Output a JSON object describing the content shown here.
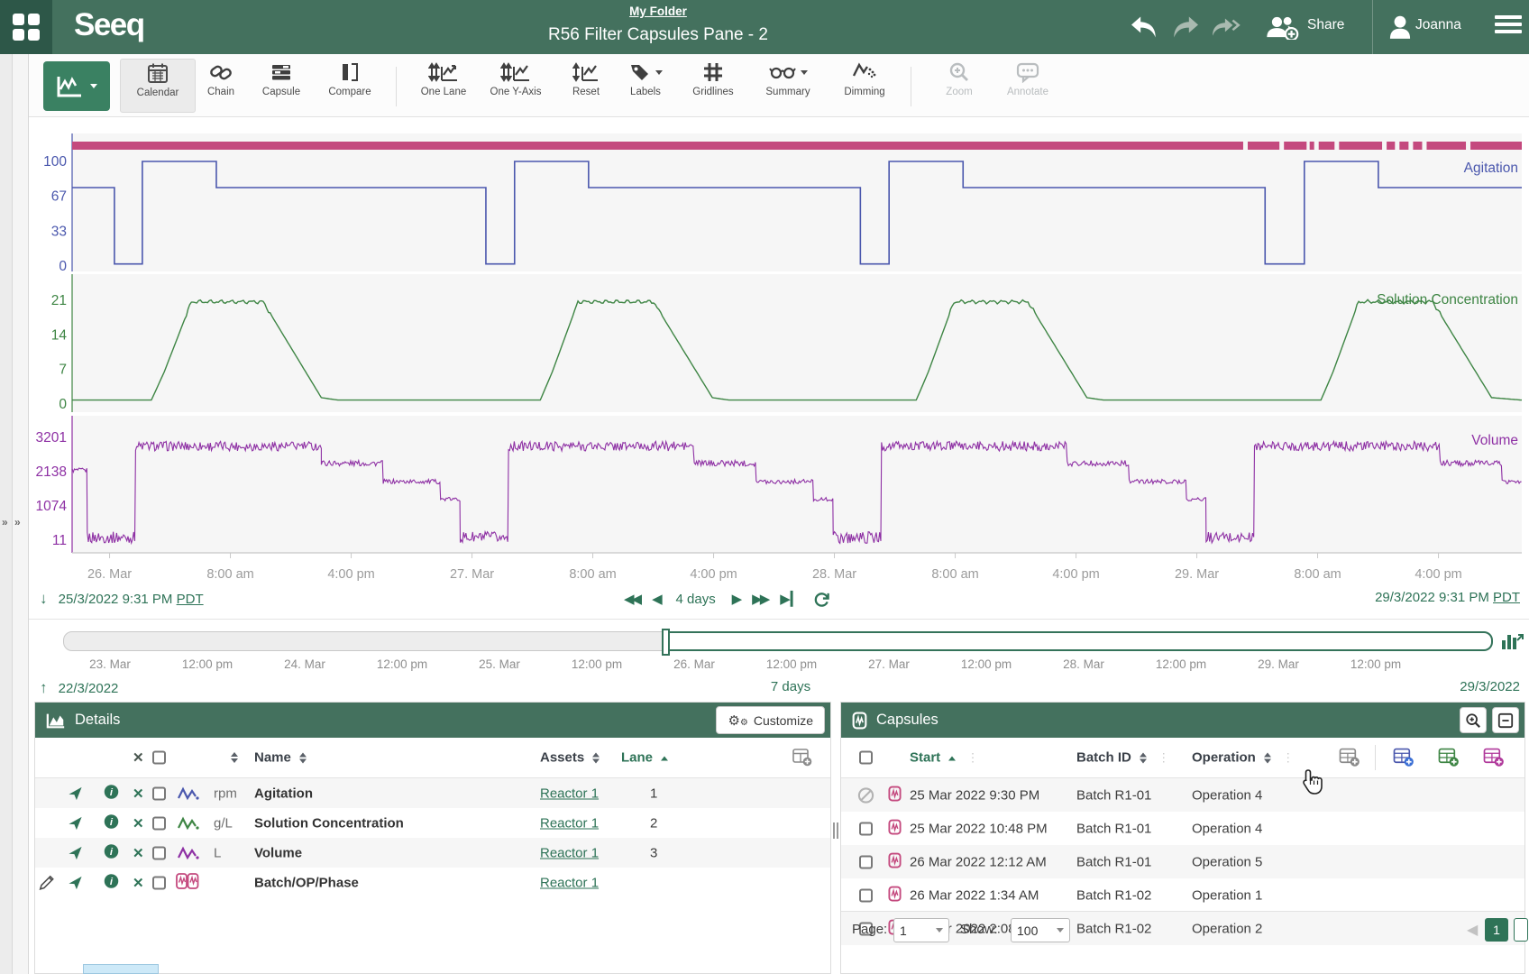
{
  "colors": {
    "header_green": "#44715e",
    "logo_box_green": "#2d5748",
    "accent_green": "#2e7357",
    "mode_btn_green": "#3a8162",
    "disabled_gray": "#b9bdbf",
    "signal_blue": "#4a57ad",
    "signal_green": "#3e8544",
    "signal_purple": "#8e30a4",
    "capsule_pink": "#c4497e"
  },
  "header": {
    "logo": "Seeq",
    "breadcrumb": "My Folder",
    "title": "R56 Filter Capsules Pane - 2",
    "share_label": "Share",
    "user_name": "Joanna"
  },
  "toolbar": {
    "tools": [
      {
        "label": "Calendar"
      },
      {
        "label": "Chain"
      },
      {
        "label": "Capsule"
      },
      {
        "label": "Compare"
      },
      {
        "label": "One Lane"
      },
      {
        "label": "One Y-Axis"
      },
      {
        "label": "Reset"
      },
      {
        "label": "Labels"
      },
      {
        "label": "Gridlines"
      },
      {
        "label": "Summary"
      },
      {
        "label": "Dimming"
      },
      {
        "label": "Zoom"
      },
      {
        "label": "Annotate"
      }
    ]
  },
  "range": {
    "start": "25/3/2022 9:31 PM",
    "start_tz": "PDT",
    "duration": "4 days",
    "end": "29/3/2022 9:31 PM",
    "end_tz": "PDT"
  },
  "scrubber": {
    "labels": [
      "23. Mar",
      "12:00 pm",
      "24. Mar",
      "12:00 pm",
      "25. Mar",
      "12:00 pm",
      "26. Mar",
      "12:00 pm",
      "27. Mar",
      "12:00 pm",
      "28. Mar",
      "12:00 pm",
      "29. Mar",
      "12:00 pm"
    ],
    "start_label": "22/3/2022",
    "duration_label": "7 days",
    "end_label": "29/3/2022"
  },
  "details": {
    "title": "Details",
    "customize_label": "Customize",
    "columns": {
      "name": "Name",
      "assets": "Assets",
      "lane": "Lane"
    },
    "rows": [
      {
        "unit": "rpm",
        "name": "Agitation",
        "asset": "Reactor 1",
        "lane": "1"
      },
      {
        "unit": "g/L",
        "name": "Solution Concentration",
        "asset": "Reactor 1",
        "lane": "2"
      },
      {
        "unit": "L",
        "name": "Volume",
        "asset": "Reactor 1",
        "lane": "3"
      },
      {
        "unit": "",
        "name": "Batch/OP/Phase",
        "asset": "Reactor 1",
        "lane": ""
      }
    ]
  },
  "capsules": {
    "title": "Capsules",
    "columns": {
      "start": "Start",
      "batch_id": "Batch ID",
      "operation": "Operation"
    },
    "rows": [
      {
        "start": "25 Mar 2022 9:30 PM",
        "batch_id": "Batch R1-01",
        "operation": "Operation 4"
      },
      {
        "start": "25 Mar 2022 10:48 PM",
        "batch_id": "Batch R1-01",
        "operation": "Operation 4"
      },
      {
        "start": "26 Mar 2022 12:12 AM",
        "batch_id": "Batch R1-01",
        "operation": "Operation 5"
      },
      {
        "start": "26 Mar 2022 1:34 AM",
        "batch_id": "Batch R1-02",
        "operation": "Operation 1"
      },
      {
        "start": "26 Mar 2022 2:08 AM",
        "batch_id": "Batch R1-02",
        "operation": "Operation 2"
      }
    ],
    "pagination": {
      "page_label": "Page:",
      "page_value": "1",
      "show_label": "Show:",
      "show_value": "100",
      "current_page": "1"
    }
  },
  "chart_data": {
    "type": "line",
    "x_axis": {
      "unit": "hours from 25 Mar 2022 9:31 PM PDT",
      "range_hours": 96,
      "ticks": [
        {
          "t": 2.48,
          "label": "26. Mar"
        },
        {
          "t": 10.48,
          "label": "8:00 am"
        },
        {
          "t": 18.48,
          "label": "4:00 pm"
        },
        {
          "t": 26.48,
          "label": "27. Mar"
        },
        {
          "t": 34.48,
          "label": "8:00 am"
        },
        {
          "t": 42.48,
          "label": "4:00 pm"
        },
        {
          "t": 50.48,
          "label": "28. Mar"
        },
        {
          "t": 58.48,
          "label": "8:00 am"
        },
        {
          "t": 66.48,
          "label": "4:00 pm"
        },
        {
          "t": 74.48,
          "label": "29. Mar"
        },
        {
          "t": 82.48,
          "label": "8:00 am"
        },
        {
          "t": 90.48,
          "label": "4:00 pm"
        }
      ]
    },
    "capsule_bar": {
      "name": "Batch/OP/Phase",
      "color": "#c4497e",
      "segments_hours": [
        [
          0,
          77.55
        ],
        [
          77.85,
          79.95
        ],
        [
          80.25,
          81.75
        ],
        [
          81.95,
          82.25
        ],
        [
          82.55,
          83.6
        ],
        [
          83.9,
          86.75
        ],
        [
          87.05,
          87.6
        ],
        [
          87.9,
          88.5
        ],
        [
          88.8,
          89.4
        ],
        [
          89.7,
          92.3
        ],
        [
          92.6,
          96
        ]
      ]
    },
    "lanes": [
      {
        "name": "Agitation",
        "unit": "rpm",
        "color": "#4a57ad",
        "lane": 1,
        "y_ticks": [
          100,
          67,
          33,
          0
        ],
        "ylim": [
          0,
          112
        ],
        "series_type": "step",
        "steps": [
          [
            0,
            2.8,
            75
          ],
          [
            2.8,
            4.65,
            2
          ],
          [
            4.65,
            9.55,
            100
          ],
          [
            9.55,
            27.4,
            75
          ],
          [
            27.4,
            29.3,
            2
          ],
          [
            29.3,
            34.2,
            100
          ],
          [
            34.2,
            52.2,
            75
          ],
          [
            52.2,
            54.1,
            2
          ],
          [
            54.1,
            59.0,
            100
          ],
          [
            59.0,
            79.0,
            75
          ],
          [
            79.0,
            81.6,
            2
          ],
          [
            81.6,
            86.5,
            100
          ],
          [
            86.5,
            96,
            75
          ]
        ]
      },
      {
        "name": "Solution Concentration",
        "unit": "g/L",
        "color": "#3e8544",
        "lane": 2,
        "y_ticks": [
          21,
          14,
          7,
          0
        ],
        "ylim": [
          0,
          22.9
        ],
        "series_type": "linear",
        "anchors": [
          [
            0,
            0.8
          ],
          [
            5.25,
            0.8
          ],
          [
            6.1,
            6.5
          ],
          [
            7.9,
            20.7
          ],
          [
            12.65,
            20.7
          ],
          [
            16.5,
            1.3
          ],
          [
            17.6,
            0.8
          ],
          [
            31.0,
            0.8
          ],
          [
            31.8,
            6.5
          ],
          [
            33.5,
            20.7
          ],
          [
            38.5,
            20.7
          ],
          [
            42.4,
            1.3
          ],
          [
            43.5,
            0.8
          ],
          [
            55.9,
            0.8
          ],
          [
            56.7,
            6.5
          ],
          [
            58.4,
            20.7
          ],
          [
            63.3,
            20.7
          ],
          [
            67.2,
            1.3
          ],
          [
            68.3,
            0.8
          ],
          [
            82.7,
            0.8
          ],
          [
            83.5,
            6.5
          ],
          [
            85.2,
            20.7
          ],
          [
            90.1,
            20.7
          ],
          [
            94.0,
            1.3
          ],
          [
            96,
            0.8
          ]
        ],
        "plateau_noise": 0.25
      },
      {
        "name": "Volume",
        "unit": "L",
        "color": "#8e30a4",
        "lane": 3,
        "y_ticks": [
          3201,
          2138,
          1074,
          11
        ],
        "ylim": [
          11,
          3590
        ],
        "series_type": "noisy",
        "segments": [
          [
            0,
            1.0,
            2180,
            70
          ],
          [
            1.0,
            4.2,
            95,
            180
          ],
          [
            4.2,
            16.5,
            2930,
            150
          ],
          [
            16.5,
            20.6,
            2400,
            90
          ],
          [
            20.6,
            24.4,
            1830,
            70
          ],
          [
            24.4,
            25.7,
            1280,
            55
          ],
          [
            25.7,
            28.9,
            95,
            180
          ],
          [
            28.9,
            41.2,
            2930,
            150
          ],
          [
            41.2,
            45.3,
            2400,
            90
          ],
          [
            45.3,
            49.1,
            1830,
            70
          ],
          [
            49.1,
            50.4,
            1280,
            55
          ],
          [
            50.4,
            53.6,
            95,
            180
          ],
          [
            53.6,
            65.9,
            2930,
            150
          ],
          [
            65.9,
            70.0,
            2400,
            90
          ],
          [
            70.0,
            73.8,
            1830,
            70
          ],
          [
            73.8,
            75.1,
            1280,
            55
          ],
          [
            75.1,
            78.3,
            95,
            180
          ],
          [
            78.3,
            90.6,
            2930,
            150
          ],
          [
            90.6,
            94.7,
            2400,
            90
          ],
          [
            94.7,
            96,
            1830,
            70
          ]
        ]
      }
    ]
  }
}
